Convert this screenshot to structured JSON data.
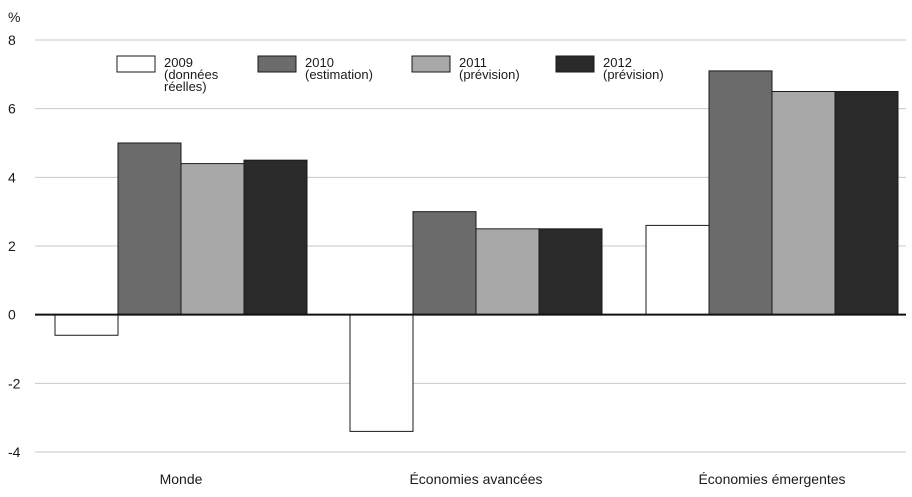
{
  "chart_data": {
    "type": "bar",
    "ylabel": "%",
    "ylim": [
      -4,
      8
    ],
    "yticks": [
      8,
      6,
      4,
      2,
      0,
      -2,
      -4
    ],
    "grid": true,
    "legend_position": "top",
    "categories": [
      "Monde",
      "Économies avancées",
      "Économies émergentes"
    ],
    "series": [
      {
        "name": "2009 (données réelles)",
        "legend_lines": [
          "2009",
          "(données",
          "réelles)"
        ],
        "color": "#ffffff",
        "values": [
          -0.6,
          -3.4,
          2.6
        ]
      },
      {
        "name": "2010 (estimation)",
        "legend_lines": [
          "2010",
          "(estimation)"
        ],
        "color": "#6b6b6b",
        "values": [
          5.0,
          3.0,
          7.1
        ]
      },
      {
        "name": "2011 (prévision)",
        "legend_lines": [
          "2011",
          "(prévision)"
        ],
        "color": "#a8a8a8",
        "values": [
          4.4,
          2.5,
          6.5
        ]
      },
      {
        "name": "2012 (prévision)",
        "legend_lines": [
          "2012",
          "(prévision)"
        ],
        "color": "#2a2a2a",
        "values": [
          4.5,
          2.5,
          6.5
        ]
      }
    ]
  }
}
